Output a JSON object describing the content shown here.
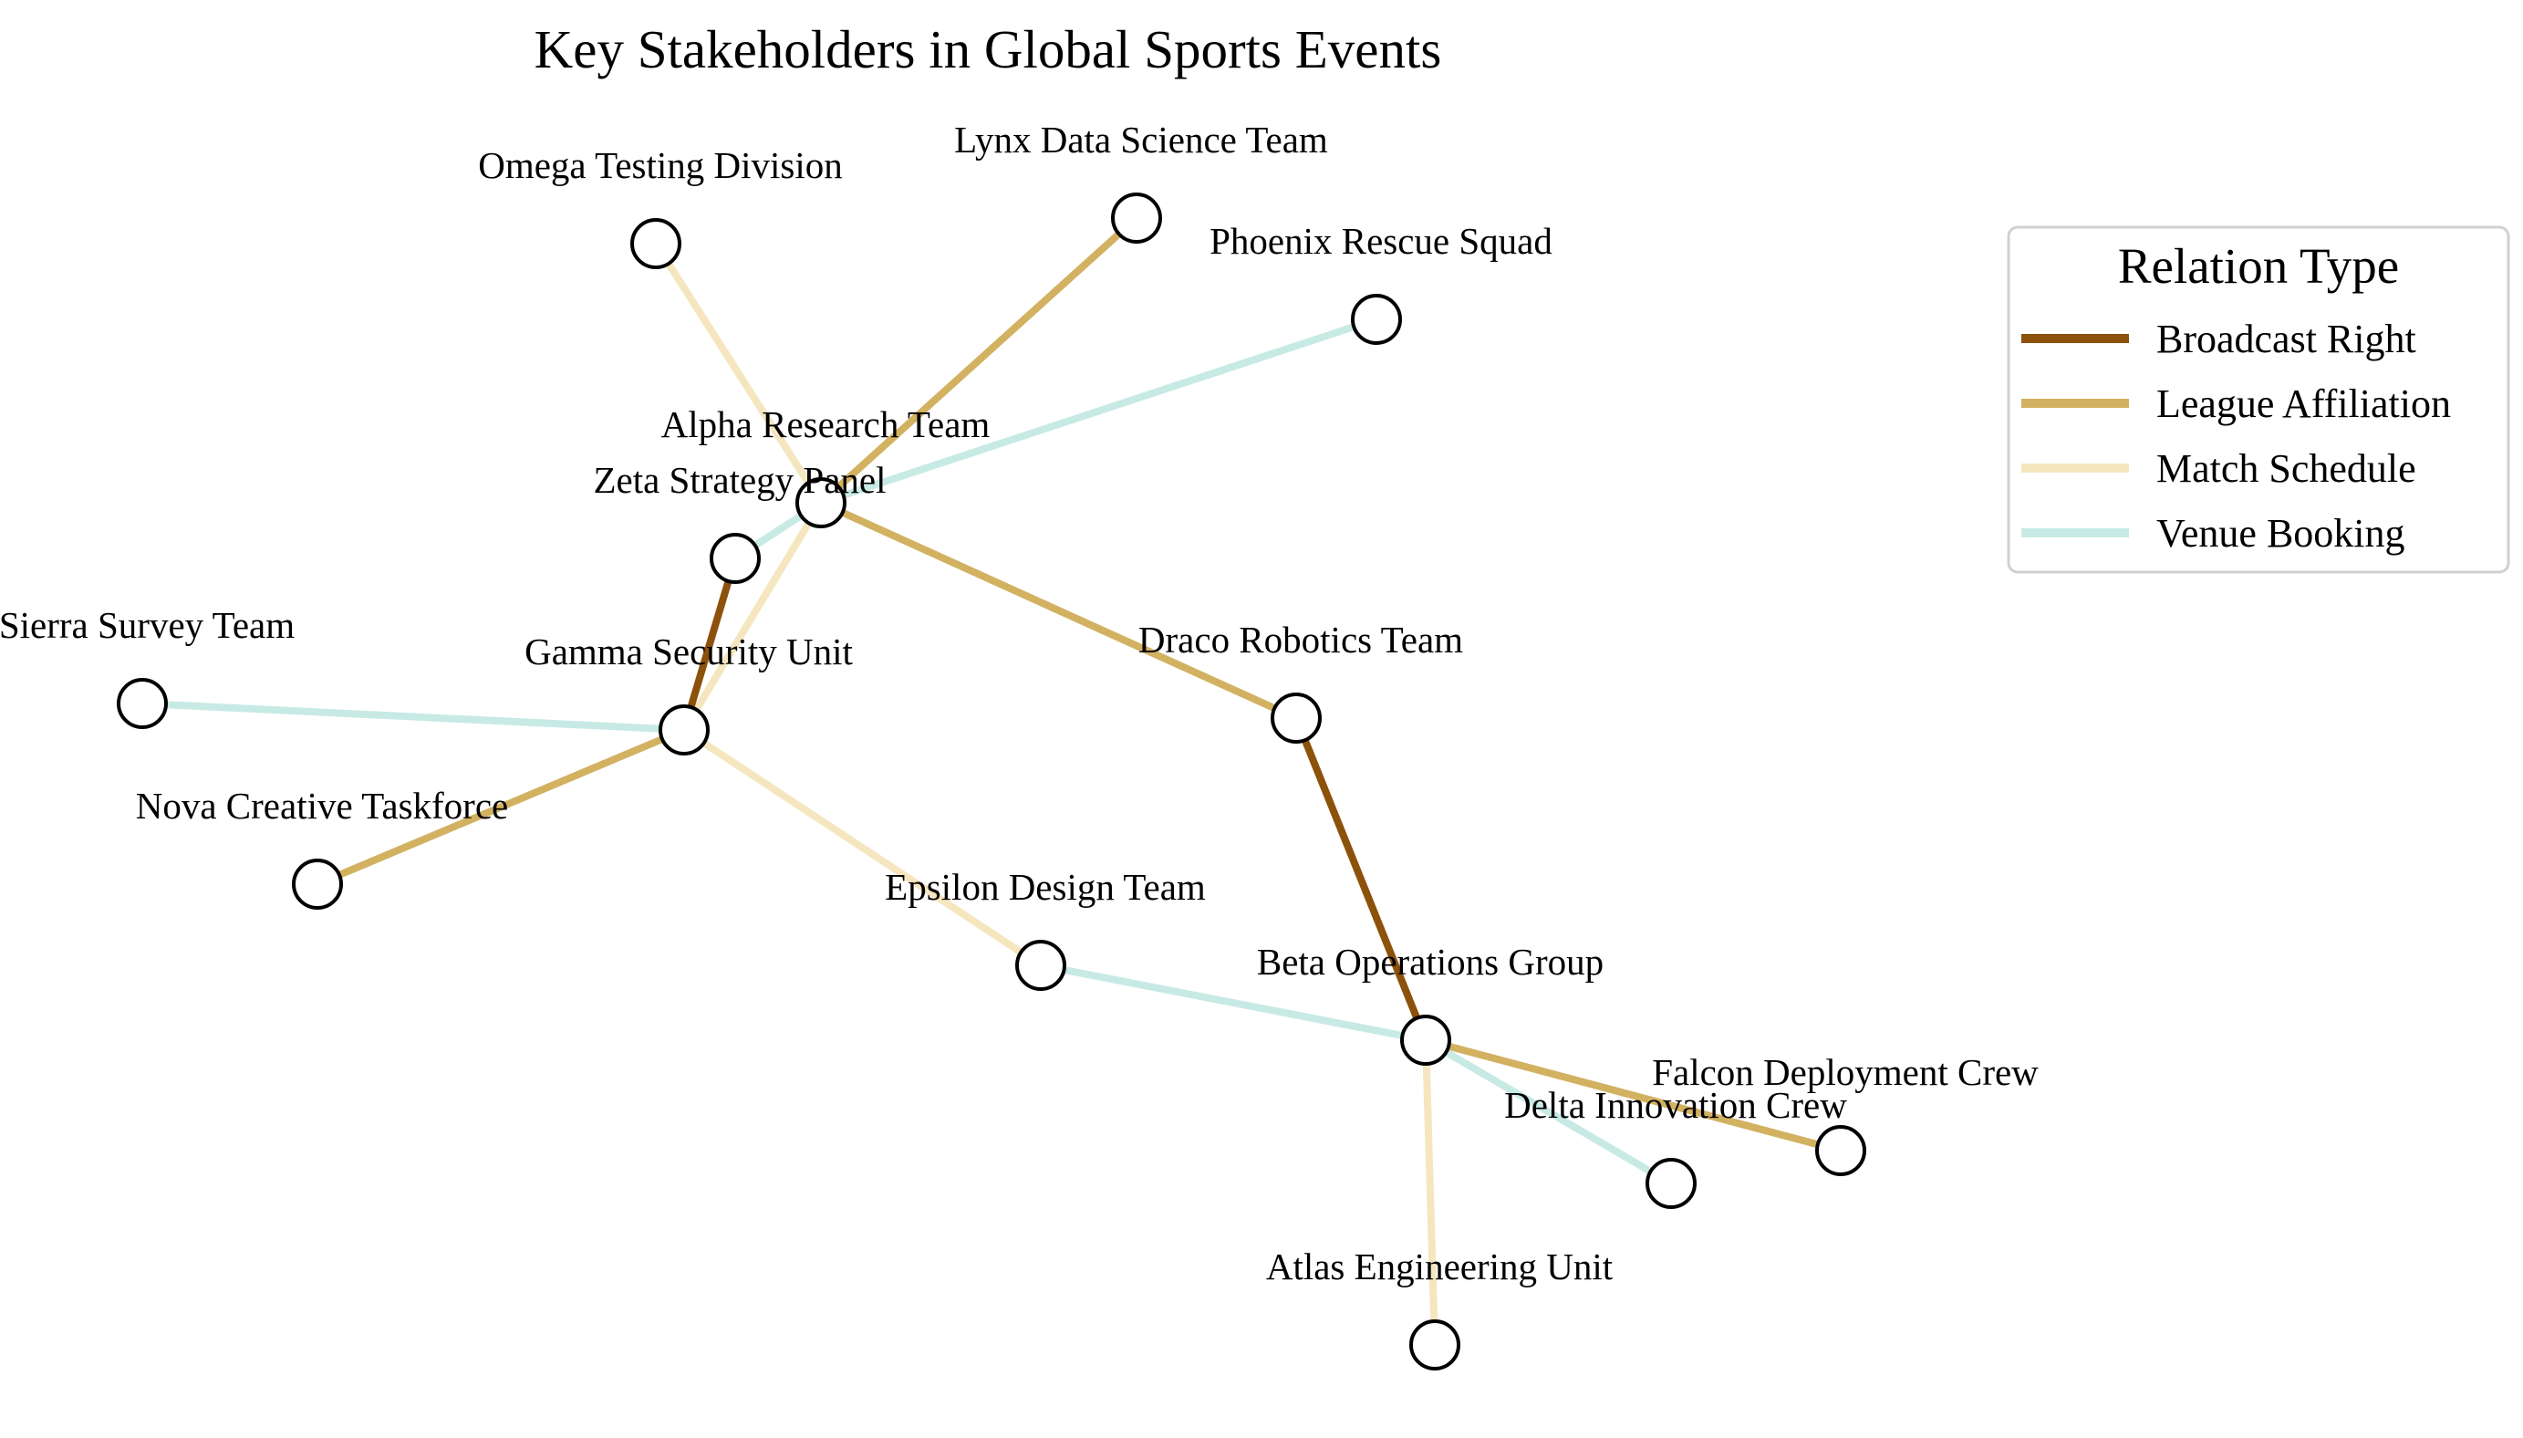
{
  "title": "Key Stakeholders in Global Sports Events",
  "legend": {
    "title": "Relation Type",
    "items": [
      {
        "key": "broadcast",
        "label": "Broadcast Right",
        "color": "#8c510a"
      },
      {
        "key": "league",
        "label": "League Affiliation",
        "color": "#d2b161"
      },
      {
        "key": "match",
        "label": "Match Schedule",
        "color": "#f5e6bf"
      },
      {
        "key": "venue",
        "label": "Venue Booking",
        "color": "#c7eae5"
      }
    ]
  },
  "nodes": [
    {
      "id": "alpha",
      "label": "Alpha Research Team"
    },
    {
      "id": "beta",
      "label": "Beta Operations Group"
    },
    {
      "id": "gamma",
      "label": "Gamma Security Unit"
    },
    {
      "id": "delta",
      "label": "Delta Innovation Crew"
    },
    {
      "id": "epsilon",
      "label": "Epsilon Design Team"
    },
    {
      "id": "zeta",
      "label": "Zeta Strategy Panel"
    },
    {
      "id": "omega",
      "label": "Omega Testing Division"
    },
    {
      "id": "lynx",
      "label": "Lynx Data Science Team"
    },
    {
      "id": "phoenix",
      "label": "Phoenix Rescue Squad"
    },
    {
      "id": "draco",
      "label": "Draco Robotics Team"
    },
    {
      "id": "sierra",
      "label": "Sierra Survey Team"
    },
    {
      "id": "nova",
      "label": "Nova Creative Taskforce"
    },
    {
      "id": "falcon",
      "label": "Falcon Deployment Crew"
    },
    {
      "id": "atlas",
      "label": "Atlas Engineering Unit"
    }
  ],
  "edges": [
    {
      "source": "alpha",
      "target": "omega",
      "type": "match"
    },
    {
      "source": "alpha",
      "target": "lynx",
      "type": "league"
    },
    {
      "source": "alpha",
      "target": "phoenix",
      "type": "venue"
    },
    {
      "source": "alpha",
      "target": "zeta",
      "type": "venue"
    },
    {
      "source": "alpha",
      "target": "gamma",
      "type": "match"
    },
    {
      "source": "alpha",
      "target": "draco",
      "type": "league"
    },
    {
      "source": "zeta",
      "target": "gamma",
      "type": "broadcast"
    },
    {
      "source": "gamma",
      "target": "sierra",
      "type": "venue"
    },
    {
      "source": "gamma",
      "target": "nova",
      "type": "league"
    },
    {
      "source": "gamma",
      "target": "epsilon",
      "type": "match"
    },
    {
      "source": "epsilon",
      "target": "beta",
      "type": "venue"
    },
    {
      "source": "draco",
      "target": "beta",
      "type": "broadcast"
    },
    {
      "source": "beta",
      "target": "falcon",
      "type": "league"
    },
    {
      "source": "beta",
      "target": "delta",
      "type": "venue"
    },
    {
      "source": "beta",
      "target": "atlas",
      "type": "match"
    }
  ]
}
